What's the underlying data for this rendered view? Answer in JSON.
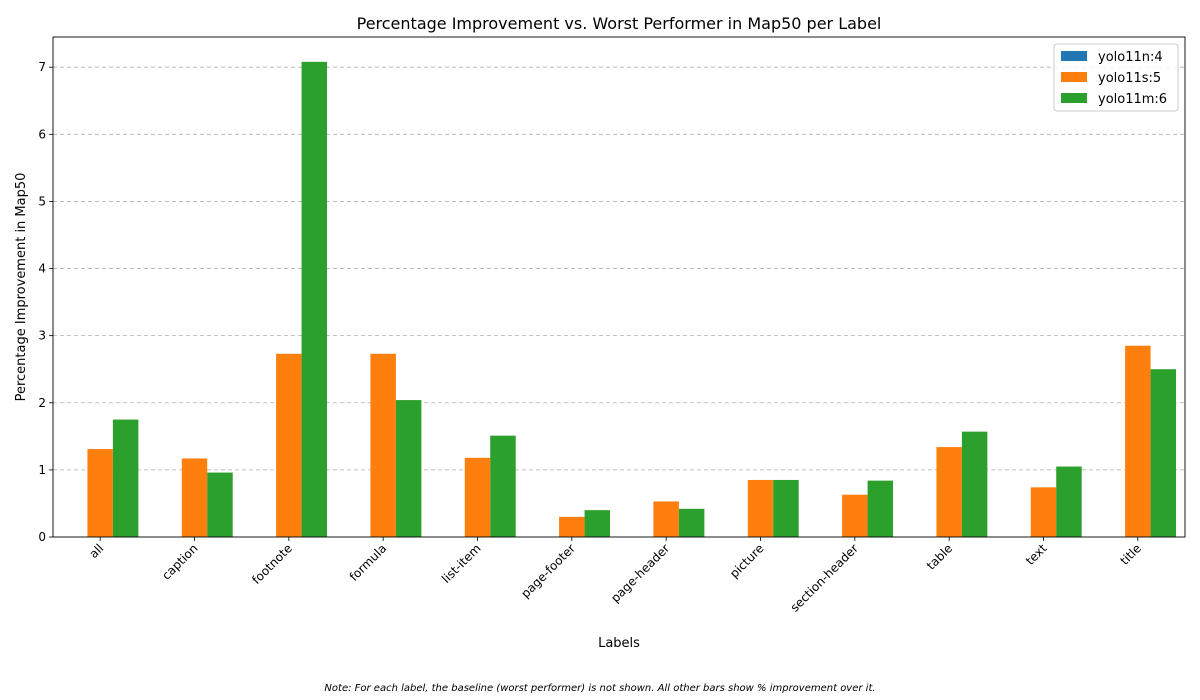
{
  "chart_data": {
    "type": "bar",
    "title": "Percentage Improvement vs. Worst Performer in Map50 per Label",
    "xlabel": "Labels",
    "ylabel": "Percentage Improvement in Map50",
    "categories": [
      "all",
      "caption",
      "footnote",
      "formula",
      "list-item",
      "page-footer",
      "page-header",
      "picture",
      "section-header",
      "table",
      "text",
      "title"
    ],
    "series": [
      {
        "name": "yolo11n:4",
        "color": "#1f77b4",
        "values": [
          0,
          0,
          0,
          0,
          0,
          0,
          0,
          0,
          0,
          0,
          0,
          0
        ]
      },
      {
        "name": "yolo11s:5",
        "color": "#ff7f0e",
        "values": [
          1.31,
          1.17,
          2.73,
          2.73,
          1.18,
          0.3,
          0.53,
          0.85,
          0.63,
          1.34,
          0.74,
          2.85
        ]
      },
      {
        "name": "yolo11m:6",
        "color": "#2ca02c",
        "values": [
          1.75,
          0.96,
          7.08,
          2.04,
          1.51,
          0.4,
          0.42,
          0.85,
          0.84,
          1.57,
          1.05,
          2.5
        ]
      }
    ],
    "yticks": [
      0,
      1,
      2,
      3,
      4,
      5,
      6,
      7
    ],
    "ylim": [
      0,
      7.45
    ],
    "grid": "y-dashed",
    "legend": "top-right"
  },
  "note": "Note: For each label, the baseline (worst performer) is not shown. All other bars show % improvement over it."
}
